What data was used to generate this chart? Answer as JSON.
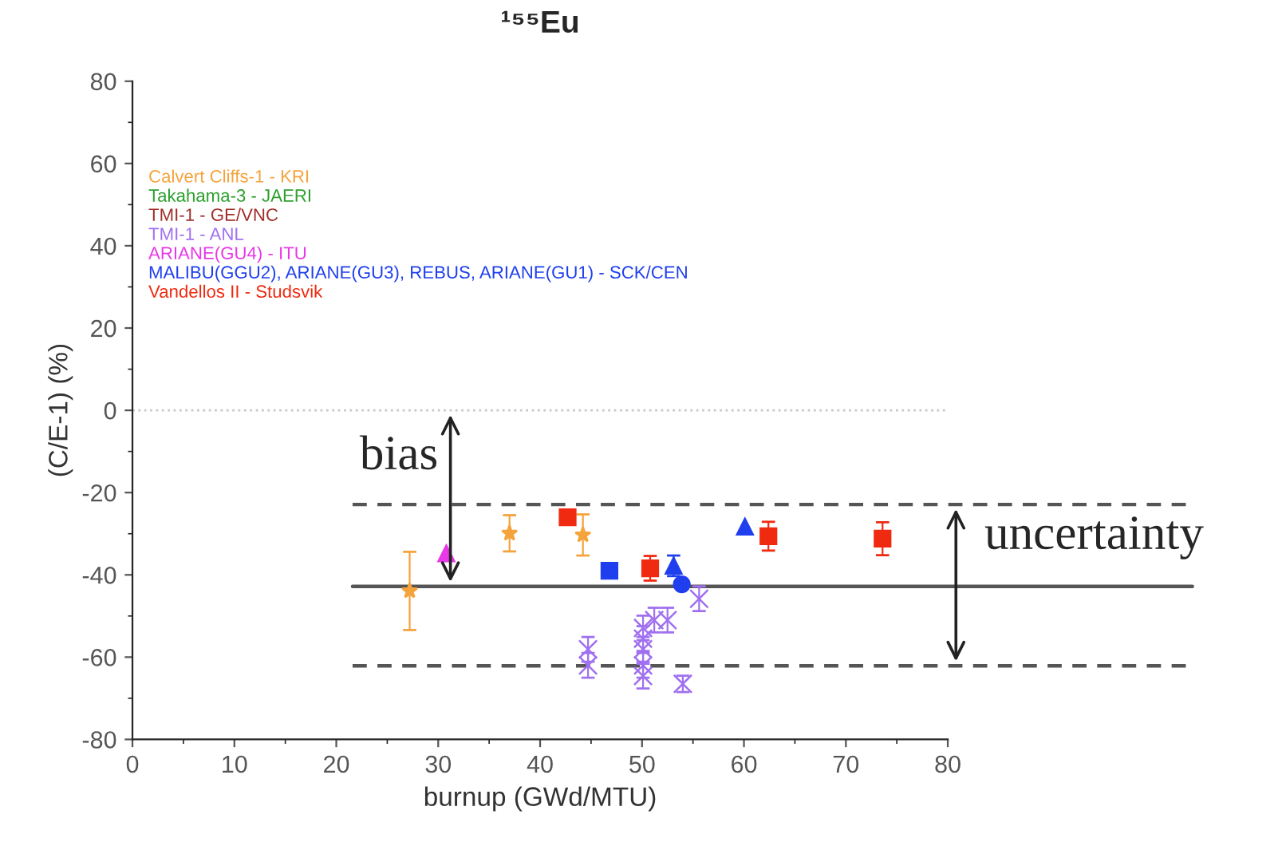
{
  "chart_data": {
    "type": "scatter",
    "title": "¹⁵⁵Eu",
    "xlabel": "burnup (GWd/MTU)",
    "ylabel": "(C/E-1) (%)",
    "xlim": [
      0,
      80
    ],
    "xticks": [
      0,
      10,
      20,
      30,
      40,
      50,
      60,
      70,
      80
    ],
    "ylim": [
      -80,
      80
    ],
    "yticks": [
      -80,
      -60,
      -40,
      -20,
      0,
      20,
      40,
      60,
      80
    ],
    "grid": false,
    "legend": "top left",
    "series": [
      {
        "name": "Calvert Cliffs-1 - KRI",
        "color": "#f5a33c",
        "marker": "star",
        "x": [
          27.2,
          37.0,
          44.2
        ],
        "values": [
          -43.9,
          -29.9,
          -30.3
        ],
        "errors": [
          9.5,
          4.4,
          5
        ]
      },
      {
        "name": "Takahama-3 - JAERI",
        "color": "#2ca02c",
        "marker": "circle"
      },
      {
        "name": "TMI-1 - GE/VNC",
        "color": "#a0302a",
        "marker": "circle"
      },
      {
        "name": "TMI-1 - ANL",
        "color": "#a070f0",
        "marker": "cross",
        "x": [
          44.7,
          44.7,
          50.1,
          50.1,
          50.1,
          50.1,
          50.1,
          51.2,
          52.5,
          54.0,
          55.6
        ],
        "values": [
          -58.1,
          -62.0,
          -52.9,
          -55.5,
          -58.1,
          -62.0,
          -64.6,
          -51.0,
          -51.0,
          -66.5,
          -45.8
        ],
        "errors": [
          3,
          3,
          3,
          3,
          3,
          3,
          3,
          3,
          3,
          2,
          3
        ]
      },
      {
        "name": "ARIANE(GU4) - ITU",
        "color": "#e838e8",
        "marker": "triangle",
        "x": [
          30.8
        ],
        "values": [
          -34.8
        ]
      },
      {
        "name": "MALIBU(GGU2), ARIANE(GU3), REBUS, ARIANE(GU1) - SCK/CEN",
        "color": "#1f3fef",
        "marker": "square",
        "x": [
          46.8
        ],
        "values": [
          -39.0
        ]
      },
      {
        "color": "#1f3fef",
        "marker": "triangle",
        "x": [
          53.1,
          60.1
        ],
        "values": [
          -37.8,
          -28.3
        ],
        "errors": [
          2.5,
          null
        ]
      },
      {
        "color": "#1f3fef",
        "marker": "circle",
        "x": [
          53.9
        ],
        "values": [
          -42.3
        ]
      },
      {
        "name": "Vandellos II - Studsvik",
        "color": "#f02a10",
        "marker": "square",
        "x": [
          42.7,
          50.8,
          62.4,
          73.6
        ],
        "values": [
          -26.0,
          -38.4,
          -30.6,
          -31.2
        ],
        "errors": [
          null,
          3,
          3.5,
          4
        ]
      }
    ],
    "ref_lines": [
      {
        "axis": "y",
        "value": 0,
        "color": "#c8c8c8",
        "line_style": "dotted"
      },
      {
        "axis": "y",
        "value": -42.8,
        "color": "#555555",
        "line_style": "solid"
      },
      {
        "axis": "y",
        "value": -22.9,
        "color": "#555555",
        "line_style": "dashed"
      },
      {
        "axis": "y",
        "value": -62.1,
        "color": "#555555",
        "line_style": "dashed"
      }
    ],
    "annotations": [
      "bias",
      "uncertainty"
    ]
  }
}
